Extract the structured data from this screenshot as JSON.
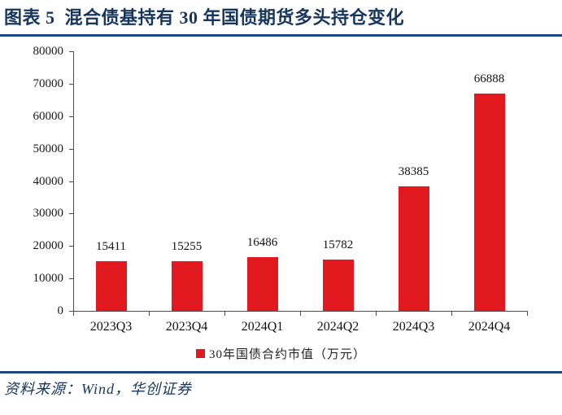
{
  "figure": {
    "label": "图表 5",
    "title": "混合债基持有 30 年国债期货多头持仓变化",
    "full_title": "图表 5  混合债基持有 30 年国债期货多头持仓变化",
    "source_note": "资料来源：Wind，华创证券"
  },
  "colors": {
    "bar": "#E21A1F",
    "title_text": "#17365D",
    "rule": "#1C4587",
    "axis": "#4d4d4d",
    "label_text": "#111111"
  },
  "chart_data": {
    "type": "bar",
    "title": "",
    "categories": [
      "2023Q3",
      "2023Q4",
      "2024Q1",
      "2024Q2",
      "2024Q3",
      "2024Q4"
    ],
    "values": [
      15411,
      15255,
      16486,
      15782,
      38385,
      66888
    ],
    "data_labels": [
      "15411",
      "15255",
      "16486",
      "15782",
      "38385",
      "66888"
    ],
    "legend": [
      "30年国债合约市值（万元）"
    ],
    "legend_position": "bottom",
    "xlabel": "",
    "ylabel": "",
    "ylim": [
      0,
      80000
    ],
    "ytick_interval": 10000,
    "ytick_labels": [
      "0",
      "10000",
      "20000",
      "30000",
      "40000",
      "50000",
      "60000",
      "70000",
      "80000"
    ],
    "grid": false
  }
}
